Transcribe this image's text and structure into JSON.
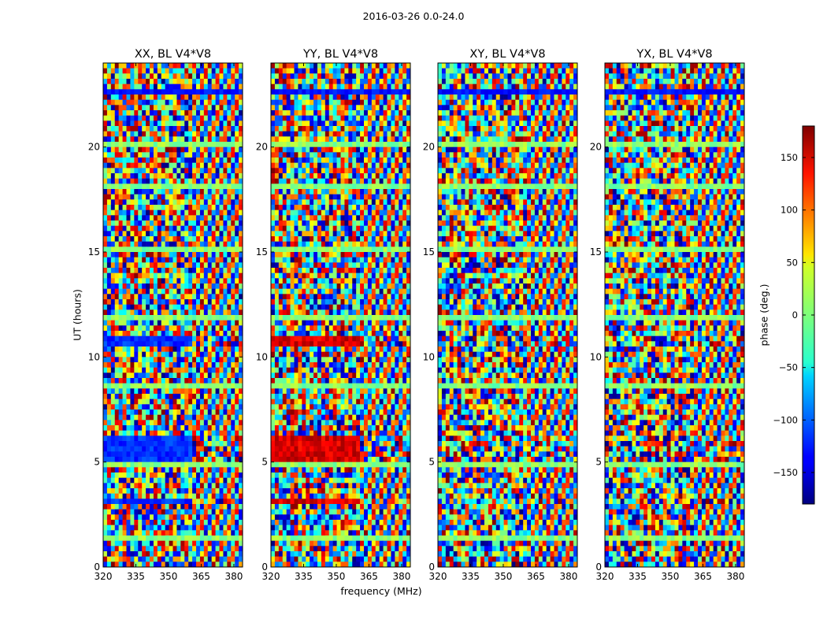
{
  "figure": {
    "suptitle": "2016-03-26 0.0-24.0",
    "xlabel": "frequency (MHz)",
    "ylabel": "UT (hours)",
    "colorbar_label": "phase (deg.)"
  },
  "chart_data": {
    "type": "heatmap",
    "title": "2016-03-26 0.0-24.0",
    "xlabel": "frequency (MHz)",
    "ylabel": "UT (hours)",
    "xlim": [
      320,
      384
    ],
    "ylim": [
      0,
      24
    ],
    "x_ticks": [
      320,
      335,
      350,
      365,
      380
    ],
    "y_ticks": [
      0,
      5,
      10,
      15,
      20
    ],
    "colorbar": {
      "label": "phase (deg.)",
      "range": [
        -180,
        180
      ],
      "ticks": [
        -150,
        -100,
        -50,
        0,
        50,
        100,
        150
      ],
      "colormap": "jet"
    },
    "panels": [
      {
        "title": "XX, BL V4*V8"
      },
      {
        "title": "YY, BL V4*V8"
      },
      {
        "title": "XY, BL V4*V8"
      },
      {
        "title": "YX, BL V4*V8"
      }
    ],
    "grid": false,
    "legend": "none"
  }
}
